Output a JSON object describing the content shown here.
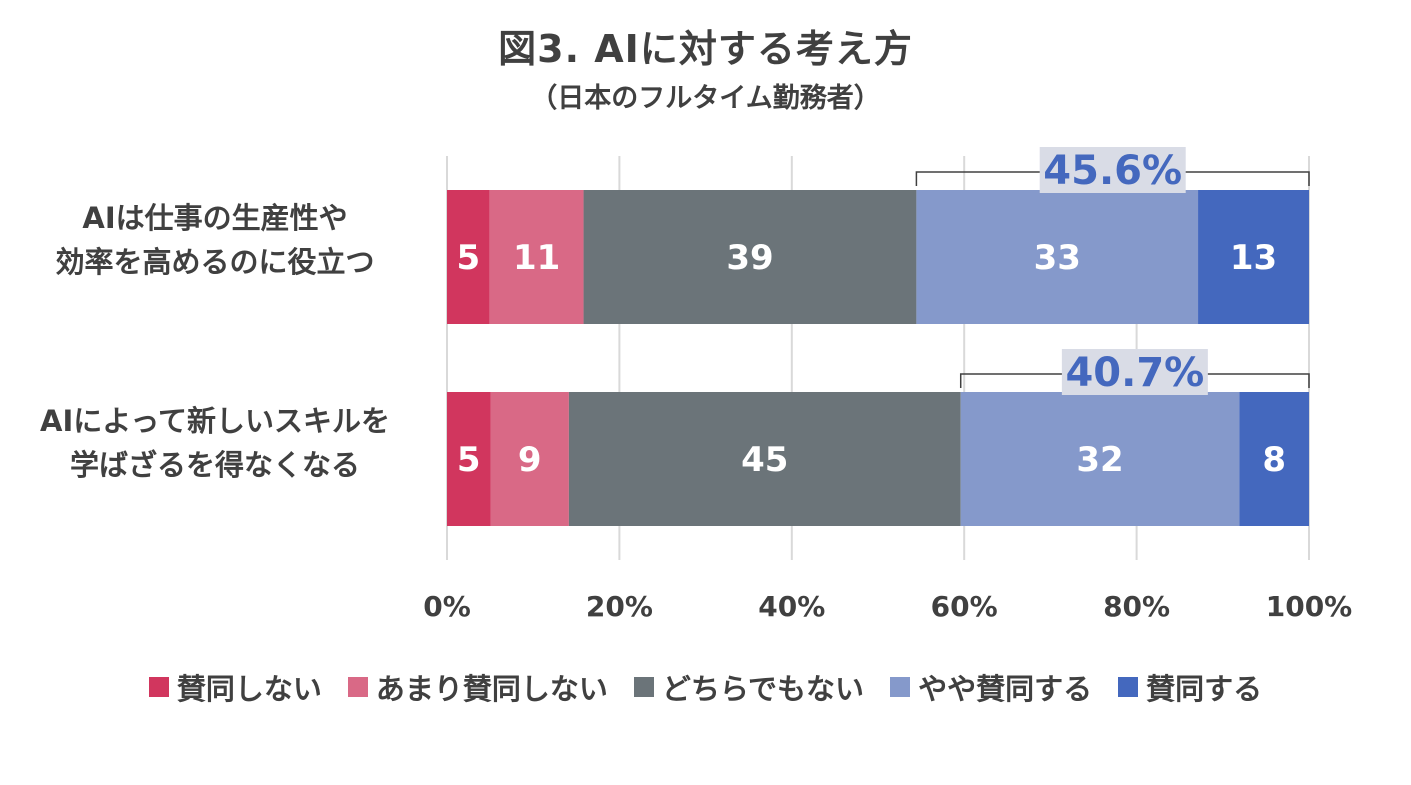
{
  "title": "図3. AIに対する考え方",
  "subtitle": "（日本のフルタイム勤務者）",
  "chart_data": {
    "type": "bar",
    "orientation": "horizontal",
    "stacked": true,
    "percent_stacked": true,
    "categories": [
      [
        "AIは仕事の生産性や",
        "効率を高めるのに役立つ"
      ],
      [
        "AIによって新しいスキルを",
        "学ばざるを得なくなる"
      ]
    ],
    "series": [
      {
        "name": "賛同しない",
        "color": "#D1365E",
        "values": [
          5,
          5
        ],
        "labels": [
          "5",
          "5"
        ]
      },
      {
        "name": "あまり賛同しない",
        "color": "#D96986",
        "values": [
          11,
          9
        ],
        "labels": [
          "11",
          "9"
        ]
      },
      {
        "name": "どちらでもない",
        "color": "#6B7479",
        "values": [
          39,
          45
        ],
        "labels": [
          "39",
          "45"
        ]
      },
      {
        "name": "やや賛同する",
        "color": "#8599CB",
        "values": [
          33,
          32
        ],
        "labels": [
          "33",
          "32"
        ]
      },
      {
        "name": "賛同する",
        "color": "#4468BE",
        "values": [
          13,
          8
        ],
        "labels": [
          "13",
          "8"
        ]
      }
    ],
    "annotations": [
      {
        "text": "45.6%",
        "category_index": 0,
        "span_series": [
          3,
          4
        ],
        "color": "#4468BE",
        "background": "#D9DCE6"
      },
      {
        "text": "40.7%",
        "category_index": 1,
        "span_series": [
          3,
          4
        ],
        "color": "#4468BE",
        "background": "#D9DCE6"
      }
    ],
    "xlim": [
      0,
      100
    ],
    "xticks": [
      0,
      20,
      40,
      60,
      80,
      100
    ],
    "xtick_labels": [
      "0%",
      "20%",
      "40%",
      "60%",
      "80%",
      "100%"
    ],
    "grid": true,
    "legend_position": "bottom"
  }
}
